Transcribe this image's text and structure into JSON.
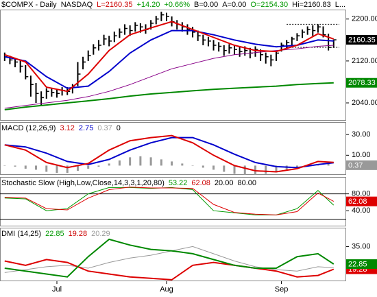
{
  "chart_data": [
    {
      "type": "ohlc",
      "header": [
        {
          "text": "$COMPX - Daily",
          "color": "#000000"
        },
        {
          "text": "NASDAQ",
          "color": "#000000"
        },
        {
          "text": "L=2160.35",
          "color": "#cc0000"
        },
        {
          "text": "+14.20",
          "color": "#009900"
        },
        {
          "text": "+0.66%",
          "color": "#009900"
        },
        {
          "text": "B=0.00",
          "color": "#000000"
        },
        {
          "text": "A=0.00",
          "color": "#000000"
        },
        {
          "text": "O=2154.30",
          "color": "#009900"
        },
        {
          "text": "Hi=2160.83",
          "color": "#000000"
        },
        {
          "text": "L...",
          "color": "#000000"
        }
      ],
      "xlim": [
        -0.5,
        65
      ],
      "x": [
        0,
        1,
        2,
        3,
        4,
        5,
        6,
        7,
        8,
        9,
        10,
        11,
        12,
        13,
        14,
        15,
        16,
        17,
        18,
        19,
        20,
        21,
        22,
        23,
        24,
        25,
        26,
        27,
        28,
        29,
        30,
        31,
        32,
        33,
        34,
        35,
        36,
        37,
        38,
        39,
        40,
        41,
        42,
        43,
        44,
        45,
        46,
        47,
        48,
        49,
        50,
        51,
        52,
        53,
        54,
        55,
        56,
        57,
        58,
        59,
        60,
        61,
        62,
        63
      ],
      "high": [
        2136,
        2130,
        2126,
        2122,
        2112,
        2092,
        2078,
        2062,
        2068,
        2068,
        2066,
        2070,
        2070,
        2076,
        2118,
        2128,
        2140,
        2152,
        2160,
        2170,
        2168,
        2176,
        2182,
        2190,
        2188,
        2194,
        2192,
        2190,
        2198,
        2206,
        2214,
        2212,
        2205,
        2198,
        2194,
        2190,
        2185,
        2178,
        2170,
        2166,
        2160,
        2156,
        2150,
        2152,
        2150,
        2146,
        2148,
        2145,
        2148,
        2142,
        2136,
        2132,
        2140,
        2155,
        2160,
        2166,
        2173,
        2180,
        2186,
        2188,
        2190,
        2186,
        2172,
        2160.83
      ],
      "low": [
        2120,
        2114,
        2108,
        2098,
        2085,
        2052,
        2040,
        2036,
        2048,
        2052,
        2050,
        2054,
        2055,
        2058,
        2072,
        2104,
        2120,
        2132,
        2140,
        2150,
        2148,
        2156,
        2164,
        2170,
        2168,
        2176,
        2174,
        2172,
        2180,
        2190,
        2196,
        2196,
        2186,
        2180,
        2176,
        2170,
        2165,
        2158,
        2150,
        2148,
        2140,
        2138,
        2130,
        2134,
        2132,
        2128,
        2130,
        2125,
        2128,
        2120,
        2115,
        2110,
        2120,
        2138,
        2144,
        2150,
        2158,
        2164,
        2170,
        2168,
        2174,
        2165,
        2140,
        2145
      ],
      "close": [
        2128,
        2122,
        2118,
        2110,
        2090,
        2075,
        2058,
        2050,
        2062,
        2060,
        2058,
        2064,
        2062,
        2070,
        2095,
        2118,
        2130,
        2145,
        2150,
        2162,
        2158,
        2168,
        2175,
        2182,
        2178,
        2188,
        2185,
        2180,
        2192,
        2200,
        2208,
        2205,
        2195,
        2190,
        2185,
        2180,
        2175,
        2168,
        2160,
        2158,
        2150,
        2148,
        2140,
        2145,
        2142,
        2138,
        2140,
        2135,
        2142,
        2132,
        2128,
        2122,
        2135,
        2150,
        2155,
        2162,
        2168,
        2175,
        2180,
        2178,
        2185,
        2170,
        2146,
        2160.35
      ],
      "color": "#000000",
      "series": [
        {
          "color": "#008800",
          "width": 2,
          "x": [
            0,
            4,
            8,
            12,
            16,
            20,
            24,
            28,
            32,
            36,
            40,
            44,
            48,
            52,
            56,
            60,
            63
          ],
          "values": [
            2027,
            2032,
            2036,
            2040,
            2044,
            2048,
            2053,
            2057,
            2060,
            2063,
            2066,
            2068,
            2070,
            2072,
            2075,
            2077,
            2078.33
          ]
        },
        {
          "color": "#880088",
          "width": 1,
          "x": [
            0,
            4,
            8,
            12,
            16,
            20,
            24,
            28,
            32,
            36,
            40,
            44,
            48,
            52,
            56,
            60,
            63
          ],
          "values": [
            2030,
            2035,
            2040,
            2045,
            2052,
            2062,
            2075,
            2090,
            2105,
            2115,
            2125,
            2132,
            2136,
            2140,
            2143,
            2148,
            2150
          ]
        },
        {
          "color": "#0000cc",
          "width": 2,
          "x": [
            0,
            4,
            8,
            12,
            16,
            20,
            24,
            28,
            32,
            36,
            40,
            44,
            48,
            52,
            56,
            60,
            63
          ],
          "values": [
            2128,
            2120,
            2090,
            2068,
            2072,
            2100,
            2135,
            2160,
            2178,
            2178,
            2170,
            2160,
            2152,
            2147,
            2150,
            2160,
            2158
          ]
        },
        {
          "color": "#dd0000",
          "width": 2,
          "x": [
            0,
            4,
            8,
            12,
            16,
            20,
            24,
            28,
            32,
            36,
            40,
            44,
            48,
            52,
            56,
            60,
            63
          ],
          "values": [
            2132,
            2118,
            2070,
            2062,
            2095,
            2140,
            2170,
            2183,
            2195,
            2180,
            2165,
            2150,
            2140,
            2138,
            2150,
            2172,
            2162
          ]
        }
      ],
      "reference_lines": [
        2190,
        2146
      ],
      "ylim": [
        2006,
        2218
      ],
      "yticks": [
        {
          "value": 2040,
          "label": "2040.00"
        },
        {
          "value": 2080,
          "label": "2080.00"
        },
        {
          "value": 2120,
          "label": "2120.00"
        },
        {
          "value": 2160,
          "label": "2160.00"
        },
        {
          "value": 2200,
          "label": "2200.00"
        }
      ],
      "end_labels": [
        {
          "value": 2078.33,
          "color": "#008800"
        },
        {
          "value": 2160.35,
          "color": "#000000"
        }
      ]
    },
    {
      "type": "line",
      "header": [
        {
          "text": "MACD (12,26,9)",
          "color": "#000000"
        },
        {
          "value": 3.12,
          "color": "#cc0000"
        },
        {
          "value": 2.75,
          "color": "#0000cc"
        },
        {
          "value": 0.37,
          "color": "#999999"
        },
        {
          "value": 0.0,
          "color": "#000000"
        }
      ],
      "xlim": [
        -0.5,
        65
      ],
      "histogram": {
        "color": "#999999",
        "x": [
          0,
          2,
          4,
          6,
          8,
          10,
          12,
          14,
          16,
          18,
          20,
          22,
          24,
          26,
          28,
          30,
          32,
          34,
          36,
          38,
          40,
          42,
          44,
          46,
          48,
          50,
          52,
          54,
          56,
          58,
          60,
          62
        ],
        "values": [
          0,
          -1,
          -3,
          -4,
          -6,
          -7,
          -7,
          -5,
          -3,
          -1,
          2,
          5,
          8,
          9,
          8,
          6,
          4,
          2,
          0,
          -2,
          -4,
          -6,
          -8,
          -9,
          -9,
          -8,
          -6,
          -4,
          -2,
          0,
          1,
          2
        ]
      },
      "series": [
        {
          "color": "#0000cc",
          "width": 2,
          "x": [
            0,
            4,
            8,
            12,
            16,
            20,
            24,
            28,
            32,
            36,
            40,
            44,
            48,
            52,
            56,
            60,
            63
          ],
          "values": [
            20,
            18,
            12,
            4,
            1,
            6,
            15,
            22,
            27,
            27,
            20,
            11,
            3,
            -1,
            -2,
            1,
            2.75
          ]
        },
        {
          "color": "#dd0000",
          "width": 2,
          "x": [
            0,
            4,
            8,
            12,
            16,
            20,
            24,
            28,
            32,
            36,
            40,
            44,
            48,
            52,
            56,
            60,
            63
          ],
          "values": [
            20,
            15,
            3,
            -2,
            2,
            15,
            24,
            27,
            29,
            22,
            10,
            0,
            -5,
            -6,
            -3,
            4,
            3.12
          ]
        }
      ],
      "ylim": [
        -9,
        42
      ],
      "yticks": [
        {
          "value": 10,
          "label": "10.00"
        },
        {
          "value": 30,
          "label": "30.00"
        }
      ],
      "end_labels": [
        {
          "value": 0.37,
          "color": "#999999"
        }
      ]
    },
    {
      "type": "line",
      "header": [
        {
          "text": "Stochastic Slow (High,Low,Close,14,3,3,1,20,80)",
          "color": "#000000"
        },
        {
          "value": 53.22,
          "color": "#009900"
        },
        {
          "value": 62.08,
          "color": "#cc0000"
        },
        {
          "text": "20.00",
          "color": "#000000"
        },
        {
          "text": "80.00",
          "color": "#000000"
        }
      ],
      "xlim": [
        -0.5,
        65
      ],
      "bands": [
        20,
        80
      ],
      "series": [
        {
          "color": "#009900",
          "width": 1,
          "x": [
            0,
            4,
            8,
            12,
            16,
            20,
            24,
            28,
            32,
            36,
            40,
            44,
            48,
            52,
            56,
            60,
            63
          ],
          "values": [
            70,
            68,
            40,
            45,
            80,
            95,
            95,
            93,
            95,
            90,
            40,
            35,
            30,
            30,
            45,
            88,
            53.22
          ]
        },
        {
          "color": "#dd0000",
          "width": 1,
          "x": [
            0,
            4,
            8,
            12,
            16,
            20,
            24,
            28,
            32,
            36,
            40,
            44,
            48,
            52,
            56,
            60,
            63
          ],
          "values": [
            72,
            70,
            45,
            42,
            70,
            90,
            96,
            94,
            94,
            93,
            55,
            36,
            32,
            30,
            38,
            82,
            62.08
          ]
        }
      ],
      "ylim": [
        3,
        120
      ],
      "yticks": [
        {
          "value": 40,
          "label": "40.00"
        },
        {
          "value": 80,
          "label": "80.00"
        }
      ],
      "end_labels": [
        {
          "value": 62.08,
          "color": "#dd0000"
        }
      ]
    },
    {
      "type": "line",
      "header": [
        {
          "text": "DMI (14,25)",
          "color": "#000000"
        },
        {
          "value": 22.85,
          "color": "#009900"
        },
        {
          "value": 19.28,
          "color": "#cc0000"
        },
        {
          "value": 20.29,
          "color": "#999999"
        }
      ],
      "xlim": [
        -0.5,
        65
      ],
      "series": [
        {
          "color": "#999999",
          "width": 1,
          "x": [
            0,
            4,
            8,
            12,
            16,
            20,
            24,
            28,
            32,
            36,
            40,
            44,
            48,
            52,
            56,
            60,
            63
          ],
          "values": [
            17,
            19,
            21,
            22,
            20,
            24,
            27,
            29,
            32,
            35,
            30,
            25,
            21,
            19,
            18,
            21,
            20.29
          ]
        },
        {
          "color": "#dd0000",
          "width": 2,
          "x": [
            0,
            4,
            8,
            12,
            16,
            20,
            24,
            28,
            32,
            36,
            40,
            44,
            48,
            52,
            56,
            60,
            63
          ],
          "values": [
            25,
            22,
            26,
            24,
            18,
            16,
            14,
            13,
            12,
            22,
            24,
            22,
            20,
            18,
            14,
            15,
            19.28
          ]
        },
        {
          "color": "#008800",
          "width": 2,
          "x": [
            0,
            4,
            8,
            12,
            16,
            20,
            24,
            28,
            32,
            36,
            40,
            44,
            48,
            52,
            56,
            60,
            63
          ],
          "values": [
            20,
            18,
            16,
            14,
            28,
            40,
            36,
            33,
            32,
            30,
            26,
            22,
            20,
            20,
            28,
            30,
            22.85
          ]
        }
      ],
      "ylim": [
        11,
        48
      ],
      "yticks": [
        {
          "value": 35,
          "label": "35.00"
        }
      ],
      "end_labels": [
        {
          "value": 19.28,
          "color": "#dd0000"
        },
        {
          "value": 22.85,
          "color": "#008800"
        }
      ],
      "xticks": [
        {
          "value": 10,
          "label": "Jul"
        },
        {
          "value": 31,
          "label": "Aug"
        },
        {
          "value": 53,
          "label": "Sep"
        }
      ]
    }
  ]
}
